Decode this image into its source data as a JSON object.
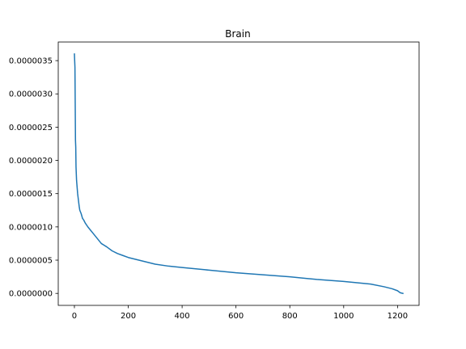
{
  "chart_data": {
    "type": "line",
    "title": "Brain",
    "xlabel": "",
    "ylabel": "",
    "xlim": [
      -60,
      1280
    ],
    "ylim": [
      -1.8e-07,
      3.78e-06
    ],
    "x_ticks": [
      0,
      200,
      400,
      600,
      800,
      1000,
      1200
    ],
    "x_tick_labels": [
      "0",
      "200",
      "400",
      "600",
      "800",
      "1000",
      "1200"
    ],
    "y_ticks": [
      0,
      5e-07,
      1e-06,
      1.5e-06,
      2e-06,
      2.5e-06,
      3e-06,
      3.5e-06
    ],
    "y_tick_labels": [
      "0.0000000",
      "0.0000005",
      "0.0000010",
      "0.0000015",
      "0.0000020",
      "0.0000025",
      "0.0000030",
      "0.0000035"
    ],
    "grid": false,
    "colors": {
      "line": "#1f77b4"
    },
    "series": [
      {
        "x": [
          0,
          2,
          4,
          5,
          6,
          8,
          10,
          12,
          15,
          18,
          20,
          25,
          30,
          35,
          40,
          50,
          60,
          70,
          80,
          90,
          100,
          120,
          140,
          160,
          180,
          200,
          250,
          300,
          350,
          400,
          500,
          600,
          700,
          800,
          900,
          1000,
          1050,
          1100,
          1150,
          1180,
          1200,
          1210,
          1220
        ],
        "y": [
          3.6e-06,
          3.4e-06,
          2.3e-06,
          2.2e-06,
          1.9e-06,
          1.7e-06,
          1.6e-06,
          1.5e-06,
          1.4e-06,
          1.3e-06,
          1.25e-06,
          1.2e-06,
          1.13e-06,
          1.1e-06,
          1.06e-06,
          1e-06,
          9.5e-07,
          9e-07,
          8.5e-07,
          8e-07,
          7.5e-07,
          7e-07,
          6.4e-07,
          6e-07,
          5.7e-07,
          5.4e-07,
          4.9e-07,
          4.4e-07,
          4.1e-07,
          3.9e-07,
          3.5e-07,
          3.1e-07,
          2.8e-07,
          2.5e-07,
          2.1e-07,
          1.8e-07,
          1.6e-07,
          1.4e-07,
          1e-07,
          7e-08,
          4e-08,
          1e-08,
          0
        ]
      }
    ]
  }
}
